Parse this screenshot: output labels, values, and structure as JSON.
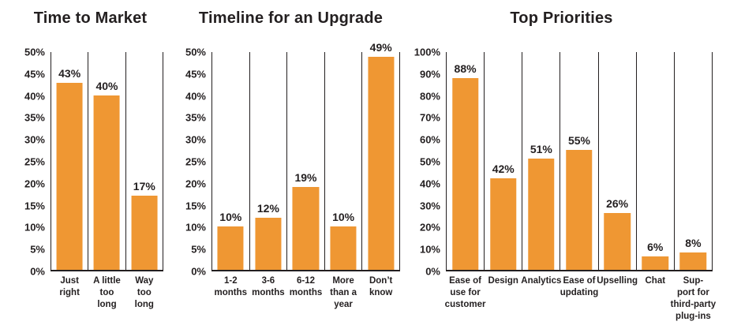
{
  "figure": {
    "background": "#ffffff",
    "bar_color": "#EF9733",
    "text_color": "#231F20",
    "line_color": "#231F20"
  },
  "chart_data": [
    {
      "type": "bar",
      "title": "Time to Market",
      "categories": [
        "Just\nright",
        "A little\ntoo\nlong",
        "Way\ntoo\nlong"
      ],
      "values": [
        43,
        40,
        17
      ],
      "value_labels": [
        "43%",
        "40%",
        "17%"
      ],
      "ylim": [
        0,
        50
      ],
      "ytick_step": 5,
      "ytick_labels": [
        "50%",
        "45%",
        "40%",
        "35%",
        "30%",
        "25%",
        "20%",
        "15%",
        "10%",
        "5%",
        "0%"
      ],
      "xlabel": "",
      "ylabel": "",
      "grid": "vertical category dividers only, no horizontal gridlines",
      "legend": "none",
      "bar_color": "#EF9733"
    },
    {
      "type": "bar",
      "title": "Timeline for an Upgrade",
      "categories": [
        "1-2\nmonths",
        "3-6\nmonths",
        "6-12\nmonths",
        "More\nthan a\nyear",
        "Don’t\nknow"
      ],
      "values": [
        10,
        12,
        19,
        10,
        49
      ],
      "value_labels": [
        "10%",
        "12%",
        "19%",
        "10%",
        "49%"
      ],
      "ylim": [
        0,
        50
      ],
      "ytick_step": 5,
      "ytick_labels": [
        "50%",
        "45%",
        "40%",
        "35%",
        "30%",
        "25%",
        "20%",
        "15%",
        "10%",
        "5%",
        "0%"
      ],
      "xlabel": "",
      "ylabel": "",
      "grid": "vertical category dividers only, no horizontal gridlines",
      "legend": "none",
      "bar_color": "#EF9733"
    },
    {
      "type": "bar",
      "title": "Top Priorities",
      "categories": [
        "Ease of\nuse for\ncustomer",
        "Design",
        "Analytics",
        "Ease of\nupdating",
        "Upselling",
        "Chat",
        "Sup-\nport for\nthird-party\nplug-ins"
      ],
      "values": [
        88,
        42,
        51,
        55,
        26,
        6,
        8
      ],
      "value_labels": [
        "88%",
        "42%",
        "51%",
        "55%",
        "26%",
        "6%",
        "8%"
      ],
      "ylim": [
        0,
        100
      ],
      "ytick_step": 10,
      "ytick_labels": [
        "100%",
        "90%",
        "80%",
        "70%",
        "60%",
        "50%",
        "40%",
        "30%",
        "20%",
        "10%",
        "0%"
      ],
      "xlabel": "",
      "ylabel": "",
      "grid": "vertical category dividers only, no horizontal gridlines",
      "legend": "none",
      "bar_color": "#EF9733"
    }
  ]
}
